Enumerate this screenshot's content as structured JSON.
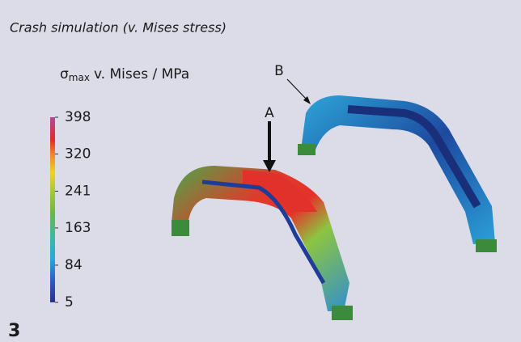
{
  "caption": "Crash simulation (v. Mises stress)",
  "colorbar": {
    "symbol": "σ",
    "symbol_subscript": "max",
    "label": "v. Mises / MPa",
    "ticks": [
      398,
      320,
      241,
      163,
      84,
      5
    ]
  },
  "markers": {
    "a": "A",
    "b": "B"
  },
  "figure_number": "3"
}
